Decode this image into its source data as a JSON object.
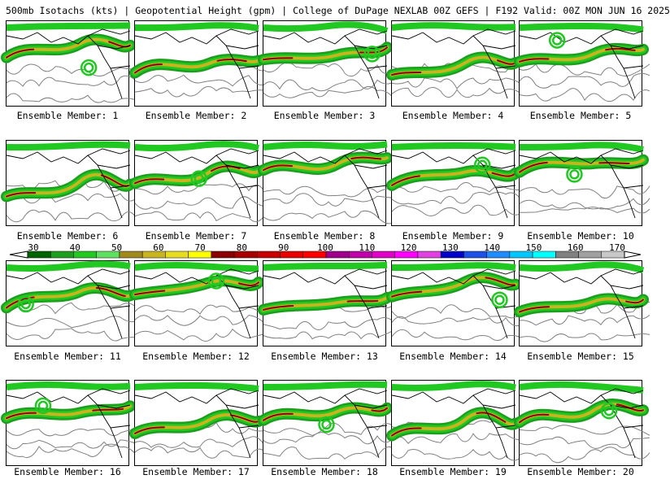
{
  "header": {
    "title": "500mb Isotachs (kts) | Geopotential Height (gpm) | College of DuPage NEXLAB   00Z GEFS | F192 Valid: 00Z MON JUN 16 2025"
  },
  "colorbar": {
    "unit": "kts",
    "labels": [
      "30",
      "40",
      "50",
      "60",
      "70",
      "80",
      "90",
      "100",
      "110",
      "120",
      "130",
      "140",
      "150",
      "160",
      "170"
    ],
    "colors": [
      "#006400",
      "#1e9e1e",
      "#22c822",
      "#60e060",
      "#a08a1e",
      "#c8b41e",
      "#e8dc1e",
      "#ffff00",
      "#8b0000",
      "#a80000",
      "#c80000",
      "#e80000",
      "#ff0000",
      "#a0008a",
      "#c000a8",
      "#e000c8",
      "#ff00ff",
      "#e040e0",
      "#0000c8",
      "#1e50e8",
      "#1e8cff",
      "#00c8ff",
      "#00ffff",
      "#808080",
      "#a0a0a0",
      "#c8c8c8"
    ]
  },
  "members": [
    {
      "label": "Ensemble Member: 1"
    },
    {
      "label": "Ensemble Member: 2"
    },
    {
      "label": "Ensemble Member: 3"
    },
    {
      "label": "Ensemble Member: 4"
    },
    {
      "label": "Ensemble Member: 5"
    },
    {
      "label": "Ensemble Member: 6"
    },
    {
      "label": "Ensemble Member: 7"
    },
    {
      "label": "Ensemble Member: 8"
    },
    {
      "label": "Ensemble Member: 9"
    },
    {
      "label": "Ensemble Member: 10"
    },
    {
      "label": "Ensemble Member: 11"
    },
    {
      "label": "Ensemble Member: 12"
    },
    {
      "label": "Ensemble Member: 13"
    },
    {
      "label": "Ensemble Member: 14"
    },
    {
      "label": "Ensemble Member: 15"
    },
    {
      "label": "Ensemble Member: 16"
    },
    {
      "label": "Ensemble Member: 17"
    },
    {
      "label": "Ensemble Member: 18"
    },
    {
      "label": "Ensemble Member: 19"
    },
    {
      "label": "Ensemble Member: 20"
    }
  ],
  "map_colors": {
    "jet_low": "#1e9e1e",
    "jet_mid": "#22c822",
    "jet_core": "#c8b41e",
    "jet_max": "#8b0000",
    "height_contour": "#808080",
    "coastline": "#000000"
  }
}
